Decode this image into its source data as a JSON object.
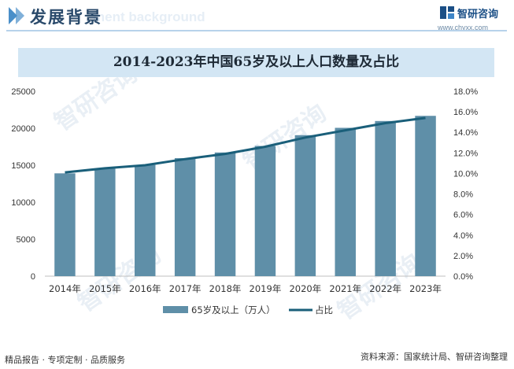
{
  "header": {
    "title": "发展背景",
    "bg_text": "ment background",
    "brand": "智研咨询",
    "brand_url": "www.chyxx.com"
  },
  "watermark": "智研咨询",
  "colors": {
    "bar": "#5f8fa8",
    "line": "#1a5f7a",
    "title_band": "#d3e6f4",
    "header_accent": "#4a8fc9"
  },
  "chart_data": {
    "type": "bar",
    "title": "2014-2023年中国65岁及以上人口数量及占比",
    "categories": [
      "2014年",
      "2015年",
      "2016年",
      "2017年",
      "2018年",
      "2019年",
      "2020年",
      "2021年",
      "2022年",
      "2023年"
    ],
    "series": [
      {
        "name": "65岁及以上（万人）",
        "type": "bar",
        "axis": "left",
        "values": [
          13902,
          14524,
          15037,
          15961,
          16724,
          17603,
          19064,
          20056,
          20978,
          21676
        ]
      },
      {
        "name": "占比",
        "type": "line",
        "axis": "right",
        "values": [
          10.1,
          10.5,
          10.8,
          11.4,
          11.9,
          12.6,
          13.5,
          14.2,
          14.9,
          15.4
        ]
      }
    ],
    "y_left": {
      "lim": [
        0,
        25000
      ],
      "ticks": [
        "0",
        "5000",
        "10000",
        "15000",
        "20000",
        "25000"
      ]
    },
    "y_right": {
      "lim": [
        0,
        18
      ],
      "ticks": [
        "0.0%",
        "2.0%",
        "4.0%",
        "6.0%",
        "8.0%",
        "10.0%",
        "12.0%",
        "14.0%",
        "16.0%",
        "18.0%"
      ]
    },
    "legend_position": "bottom",
    "grid": false
  },
  "footer": {
    "left": "精品报告 · 专项定制 · 品质服务",
    "right": "资料来源：国家统计局、智研咨询整理"
  }
}
